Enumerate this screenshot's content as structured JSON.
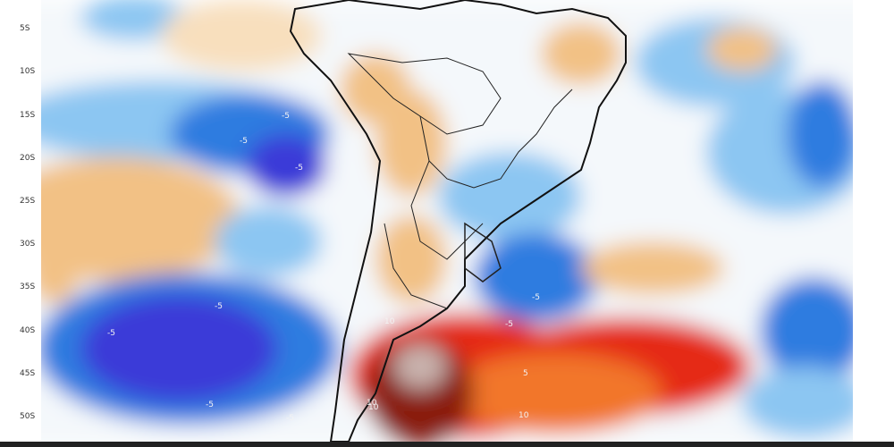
{
  "map": {
    "lat_labels": [
      "5S",
      "10S",
      "15S",
      "20S",
      "25S",
      "30S",
      "35S",
      "40S",
      "45S",
      "50S"
    ],
    "contour_labels": [
      "-5",
      "-5",
      "-5",
      "-5",
      "-5",
      "-5",
      "-5",
      "-5",
      "-5",
      "10",
      "10",
      "10",
      "5",
      "10"
    ],
    "colors": {
      "deep_blue": "#3a3ad8",
      "blue": "#2f7be0",
      "light_blue": "#8cc6f2",
      "pale_blue": "#d6ecfb",
      "orange": "#f2c185",
      "pale_orange": "#f8dfbd",
      "red": "#e52a12",
      "dark_red": "#8a1a10",
      "maroon": "#6b2a22"
    }
  }
}
